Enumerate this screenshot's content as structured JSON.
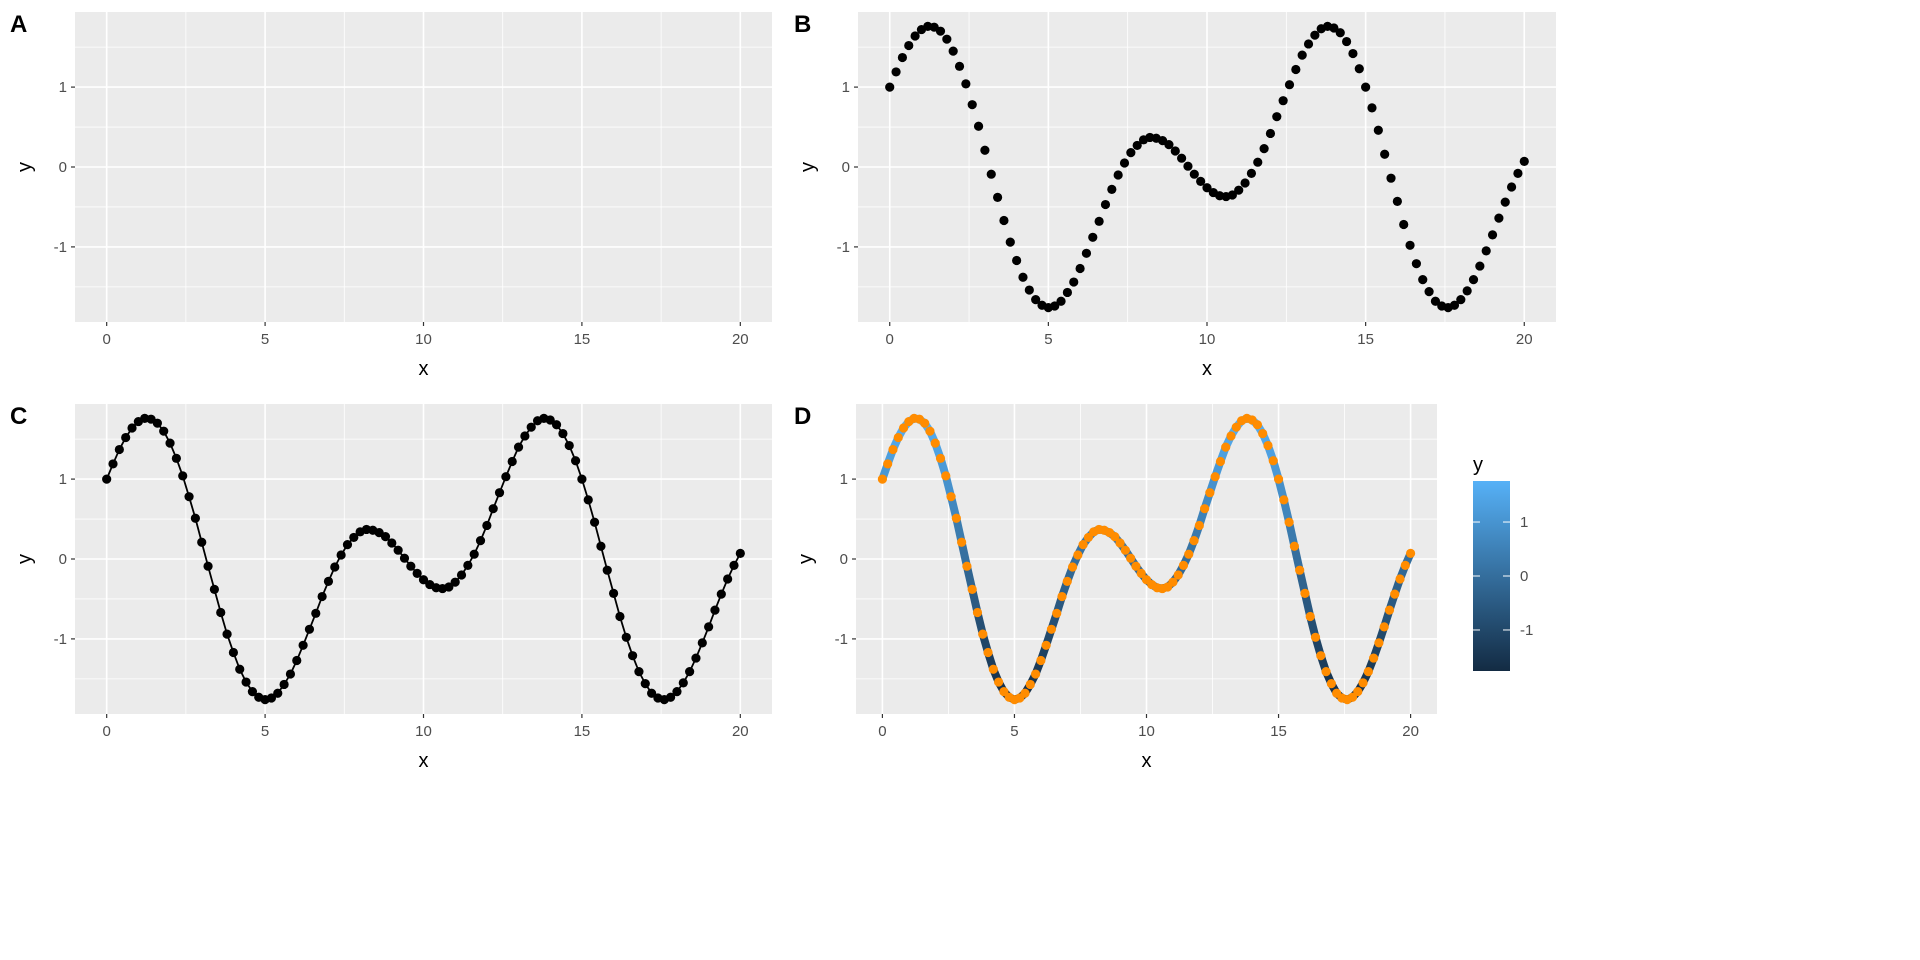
{
  "chart_data": [
    {
      "tag": "A",
      "type": "scatter",
      "title": "",
      "xlabel": "x",
      "ylabel": "y",
      "xlim": [
        -1,
        21
      ],
      "ylim": [
        -1.94,
        1.94
      ],
      "xticks": [
        "0",
        "5",
        "10",
        "15",
        "20"
      ],
      "yticks": [
        "-1",
        "0",
        "1"
      ],
      "layers": [],
      "grid": true
    },
    {
      "tag": "B",
      "type": "scatter",
      "title": "",
      "xlabel": "x",
      "ylabel": "y",
      "xlim": [
        -1,
        21
      ],
      "ylim": [
        -1.94,
        1.94
      ],
      "xticks": [
        "0",
        "5",
        "10",
        "15",
        "20"
      ],
      "yticks": [
        "-1",
        "0",
        "1"
      ],
      "layers": [
        "points"
      ],
      "grid": true
    },
    {
      "tag": "C",
      "type": "line",
      "title": "",
      "xlabel": "x",
      "ylabel": "y",
      "xlim": [
        -1,
        21
      ],
      "ylim": [
        -1.94,
        1.94
      ],
      "xticks": [
        "0",
        "5",
        "10",
        "15",
        "20"
      ],
      "yticks": [
        "-1",
        "0",
        "1"
      ],
      "layers": [
        "line",
        "points"
      ],
      "grid": true
    },
    {
      "tag": "D",
      "type": "line",
      "title": "",
      "xlabel": "x",
      "ylabel": "y",
      "xlim": [
        -1,
        21
      ],
      "ylim": [
        -1.94,
        1.94
      ],
      "xticks": [
        "0",
        "5",
        "10",
        "15",
        "20"
      ],
      "yticks": [
        "-1",
        "0",
        "1"
      ],
      "layers": [
        "gradient-line",
        "orange-points"
      ],
      "grid": true,
      "legend": {
        "title": "y",
        "ticks": [
          "-1",
          "0",
          "1"
        ],
        "range": [
          -1.76,
          1.76
        ],
        "low_color": "#132B43",
        "high_color": "#56B1F7",
        "placement": "right"
      }
    }
  ],
  "series": {
    "x": [
      0,
      0.2,
      0.4,
      0.6,
      0.8,
      1,
      1.2,
      1.4,
      1.6,
      1.8,
      2,
      2.2,
      2.4,
      2.6,
      2.8,
      3,
      3.2,
      3.4,
      3.6,
      3.8,
      4,
      4.2,
      4.4,
      4.6,
      4.8,
      5,
      5.2,
      5.4,
      5.6,
      5.8,
      6,
      6.2,
      6.4,
      6.6,
      6.8,
      7,
      7.2,
      7.4,
      7.6,
      7.8,
      8,
      8.2,
      8.4,
      8.6,
      8.8,
      9,
      9.2,
      9.4,
      9.6,
      9.8,
      10,
      10.2,
      10.4,
      10.6,
      10.8,
      11,
      11.2,
      11.4,
      11.6,
      11.8,
      12,
      12.2,
      12.4,
      12.6,
      12.8,
      13,
      13.2,
      13.4,
      13.6,
      13.8,
      14,
      14.2,
      14.4,
      14.6,
      14.8,
      15,
      15.2,
      15.4,
      15.6,
      15.8,
      16,
      16.2,
      16.4,
      16.6,
      16.8,
      17,
      17.2,
      17.4,
      17.6,
      17.8,
      18,
      18.2,
      18.4,
      18.6,
      18.8,
      19,
      19.2,
      19.4,
      19.6,
      19.8,
      20
    ],
    "y": [
      1.0,
      1.19,
      1.37,
      1.52,
      1.64,
      1.72,
      1.76,
      1.75,
      1.7,
      1.6,
      1.45,
      1.26,
      1.04,
      0.78,
      0.51,
      0.21,
      -0.09,
      -0.38,
      -0.67,
      -0.94,
      -1.17,
      -1.38,
      -1.54,
      -1.66,
      -1.73,
      -1.76,
      -1.74,
      -1.68,
      -1.57,
      -1.44,
      -1.27,
      -1.08,
      -0.88,
      -0.68,
      -0.47,
      -0.28,
      -0.1,
      0.05,
      0.18,
      0.27,
      0.34,
      0.37,
      0.36,
      0.33,
      0.28,
      0.2,
      0.11,
      0.01,
      -0.09,
      -0.18,
      -0.26,
      -0.32,
      -0.36,
      -0.37,
      -0.35,
      -0.29,
      -0.2,
      -0.08,
      0.06,
      0.23,
      0.42,
      0.63,
      0.83,
      1.03,
      1.22,
      1.4,
      1.54,
      1.65,
      1.73,
      1.76,
      1.74,
      1.68,
      1.57,
      1.42,
      1.23,
      1.0,
      0.74,
      0.46,
      0.16,
      -0.14,
      -0.43,
      -0.72,
      -0.98,
      -1.21,
      -1.41,
      -1.56,
      -1.68,
      -1.74,
      -1.76,
      -1.73,
      -1.66,
      -1.55,
      -1.41,
      -1.24,
      -1.05,
      -0.85,
      -0.64,
      -0.44,
      -0.25,
      -0.08,
      0.07
    ]
  },
  "colors": {
    "panel_bg": "#EBEBEB",
    "grid": "#FFFFFF",
    "point": "#000000",
    "point_orange": "#FF8C00"
  }
}
